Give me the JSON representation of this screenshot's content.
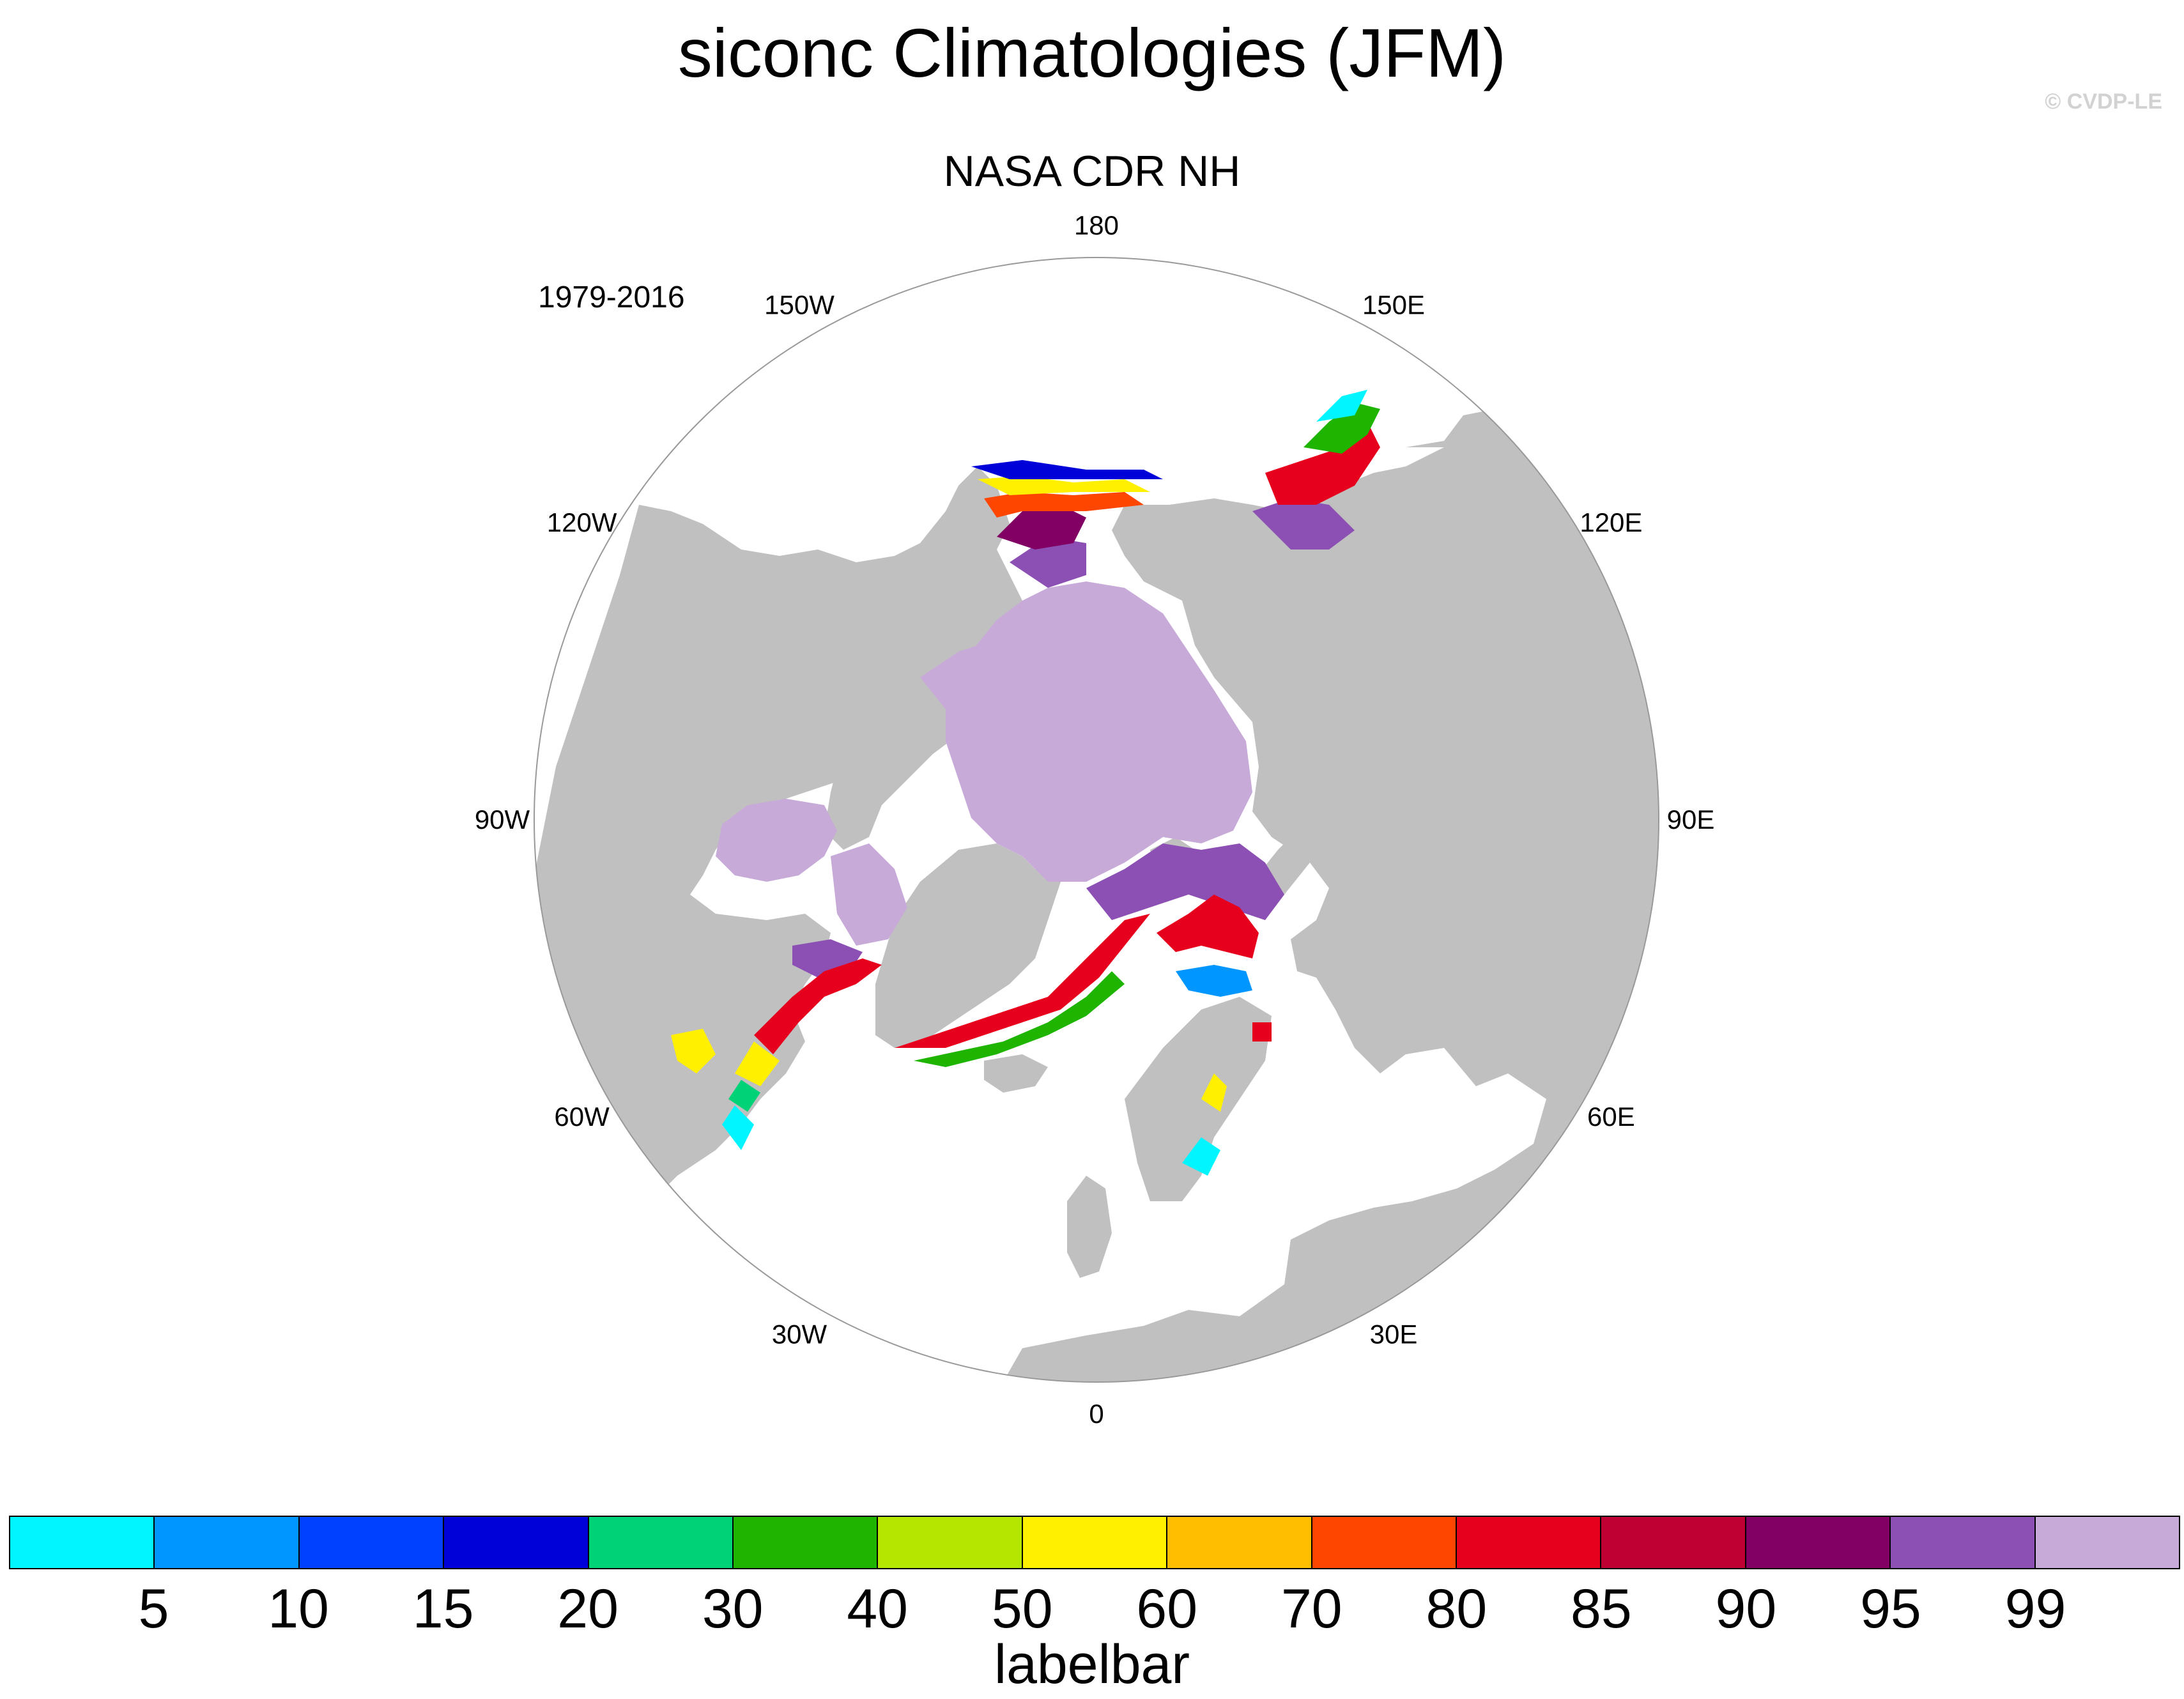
{
  "title": "siconc Climatologies (JFM)",
  "watermark": "© CVDP-LE",
  "subtitle": "NASA CDR NH",
  "period": "1979-2016",
  "lon_labels": [
    "180",
    "150E",
    "120E",
    "90E",
    "60E",
    "30E",
    "0",
    "30W",
    "60W",
    "90W",
    "120W",
    "150W"
  ],
  "labelbar": {
    "title": "labelbar",
    "ticks": [
      "5",
      "10",
      "15",
      "20",
      "30",
      "40",
      "50",
      "60",
      "70",
      "80",
      "85",
      "90",
      "95",
      "99"
    ],
    "colors": [
      "#00f5ff",
      "#0096ff",
      "#0040ff",
      "#0000d8",
      "#00d278",
      "#1eb400",
      "#b4e600",
      "#fff000",
      "#ffbe00",
      "#ff4600",
      "#e6001e",
      "#be0032",
      "#820064",
      "#8c50b4",
      "#c8aad8"
    ]
  },
  "colors": {
    "land": "#c0c0c0",
    "ocean": "#ffffff",
    "outline": "#999999"
  }
}
